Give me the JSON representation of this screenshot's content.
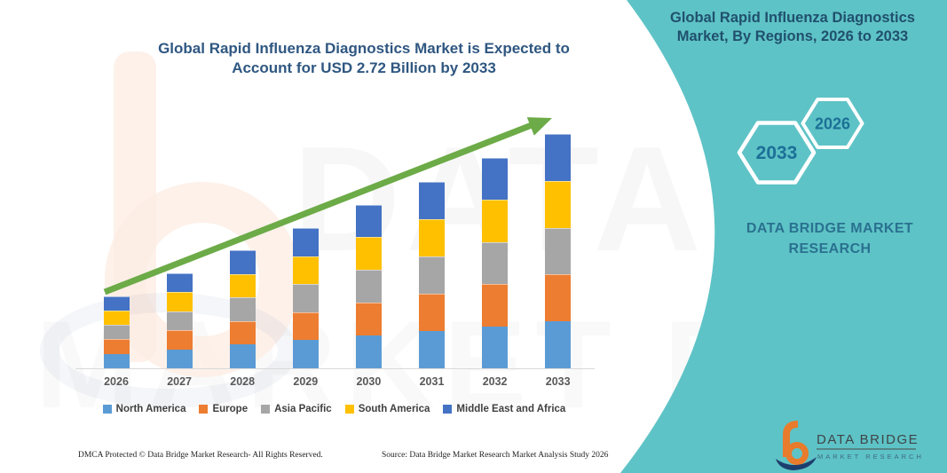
{
  "colors": {
    "teal_band": "#5EC3C6",
    "main_title": "#2F5781",
    "panel_title": "#20506E",
    "hexagon_text": "#1C7097",
    "brand_text": "#2A7190",
    "trend_arrow": "#6CAB47",
    "axis_label": "#595959",
    "legend_text": "#3F3F3F",
    "logo_orange": "#E87B2C",
    "logo_navy": "#1C3E6E"
  },
  "chart": {
    "title_line1": "Global Rapid Influenza Diagnostics Market is Expected to",
    "title_line2": "Account for USD 2.72 Billion by 2033"
  },
  "side_panel": {
    "title_line1": "Global Rapid Influenza Diagnostics",
    "title_line2": "Market, By Regions, 2026 to 2033",
    "hexagons": [
      {
        "label": "2033"
      },
      {
        "label": "2026"
      }
    ],
    "brand_line1": "DATA BRIDGE MARKET",
    "brand_line2": "RESEARCH"
  },
  "logo": {
    "title": "DATA BRIDGE",
    "subtitle": "MARKET RESEARCH"
  },
  "watermark": {
    "row1": "DATA BRIDGE",
    "row2": "MARKET RESEARCH"
  },
  "footer": {
    "dmca": "DMCA Protected © Data Bridge Market Research-  All Rights Reserved.",
    "source": "Source: Data Bridge Market Research  Market Analysis Study 2026"
  },
  "chart_data": {
    "type": "bar",
    "stacked": true,
    "title": "Global Rapid Influenza Diagnostics Market is Expected to Account for USD 2.72 Billion by 2033",
    "unit": "USD Billion",
    "categories": [
      "2026",
      "2027",
      "2028",
      "2029",
      "2030",
      "2031",
      "2032",
      "2033"
    ],
    "totals_usd_billion": [
      0.84,
      1.11,
      1.37,
      1.63,
      1.9,
      2.17,
      2.45,
      2.72
    ],
    "series": [
      {
        "name": "North America",
        "color": "#5B9BD5",
        "values": [
          0.168,
          0.222,
          0.274,
          0.326,
          0.38,
          0.434,
          0.49,
          0.544
        ]
      },
      {
        "name": "Europe",
        "color": "#ED7D31",
        "values": [
          0.168,
          0.222,
          0.274,
          0.326,
          0.38,
          0.434,
          0.49,
          0.544
        ]
      },
      {
        "name": "Asia Pacific",
        "color": "#A6A6A6",
        "values": [
          0.168,
          0.222,
          0.274,
          0.326,
          0.38,
          0.434,
          0.49,
          0.544
        ]
      },
      {
        "name": "South America",
        "color": "#FFC000",
        "values": [
          0.168,
          0.222,
          0.274,
          0.326,
          0.38,
          0.434,
          0.49,
          0.544
        ]
      },
      {
        "name": "Middle East and Africa",
        "color": "#4472C4",
        "values": [
          0.168,
          0.222,
          0.274,
          0.326,
          0.38,
          0.434,
          0.49,
          0.544
        ]
      }
    ],
    "ylim": [
      0,
      2.9
    ],
    "grid": false,
    "y_axis_visible": false,
    "legend_position": "bottom",
    "trend_arrow": true
  }
}
